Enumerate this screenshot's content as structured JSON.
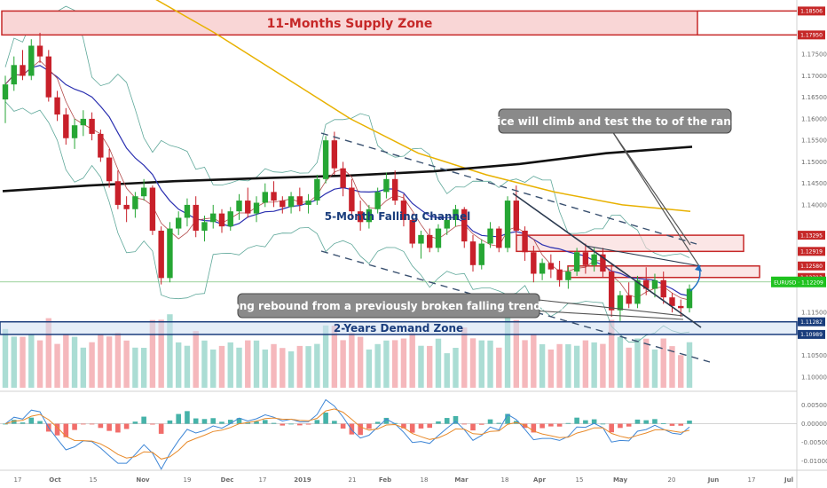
{
  "chart_data": {
    "type": "candlestick",
    "price_axis": {
      "ylim": [
        1.0975,
        1.187
      ],
      "ticks": [
        "1.18506",
        "1.17950",
        "1.17500",
        "1.17000",
        "1.16500",
        "1.16000",
        "1.15500",
        "1.15000",
        "1.14500",
        "1.14000",
        "1.13295",
        "1.12919",
        "1.12580",
        "1.12313",
        "1.11500",
        "1.11282",
        "1.10989",
        "1.10500",
        "1.10000"
      ],
      "current_price_label": "EURUSD · 1.12209",
      "current_price": 1.12209
    },
    "oscillator_axis": {
      "ylim": [
        -0.0115,
        0.0075
      ],
      "ticks": [
        "0.00500",
        "0.00000",
        "-0.00500",
        "-0.01000"
      ]
    },
    "time_axis": {
      "labels": [
        "17",
        "Oct",
        "15",
        "Nov",
        "19",
        "Dec",
        "17",
        "2019",
        "21",
        "Feb",
        "18",
        "Mar",
        "18",
        "Apr",
        "15",
        "May",
        "20",
        "Jun",
        "17",
        "Jul"
      ],
      "months": [
        "Oct",
        "Nov",
        "Dec",
        "2019",
        "Feb",
        "Mar",
        "Apr",
        "May",
        "Jun",
        "Jul"
      ]
    },
    "zones": [
      {
        "label": "11-Months Supply Zone",
        "top": 1.18506,
        "bottom": 1.1795,
        "color": "#c62828"
      },
      {
        "label": "2-Years Demand Zone",
        "top": 1.11282,
        "bottom": 1.10989,
        "color": "#1a3d7c"
      },
      {
        "label": "",
        "top": 1.13295,
        "bottom": 1.12919,
        "color": "#c62828"
      },
      {
        "label": "",
        "top": 1.1258,
        "bottom": 1.12313,
        "color": "#c62828"
      }
    ],
    "annotations": [
      {
        "text": "Price will climb and test the to of the range"
      },
      {
        "text": "Strong rebound from a previously broken falling trendline"
      },
      {
        "text": "5-Month Falling Channel"
      }
    ],
    "candles_ohlc": [
      [
        1.1645,
        1.17,
        1.159,
        1.168
      ],
      [
        1.168,
        1.1745,
        1.1665,
        1.1725
      ],
      [
        1.1725,
        1.176,
        1.169,
        1.17
      ],
      [
        1.17,
        1.1785,
        1.169,
        1.177
      ],
      [
        1.177,
        1.18,
        1.173,
        1.1745
      ],
      [
        1.1745,
        1.176,
        1.164,
        1.165
      ],
      [
        1.165,
        1.1665,
        1.1595,
        1.161
      ],
      [
        1.161,
        1.1625,
        1.154,
        1.1555
      ],
      [
        1.1555,
        1.16,
        1.153,
        1.1585
      ],
      [
        1.1585,
        1.162,
        1.156,
        1.16
      ],
      [
        1.16,
        1.1615,
        1.155,
        1.1565
      ],
      [
        1.1565,
        1.1575,
        1.15,
        1.151
      ],
      [
        1.151,
        1.153,
        1.144,
        1.1455
      ],
      [
        1.1455,
        1.148,
        1.139,
        1.14
      ],
      [
        1.14,
        1.142,
        1.136,
        1.139
      ],
      [
        1.139,
        1.143,
        1.137,
        1.142
      ],
      [
        1.142,
        1.146,
        1.141,
        1.144
      ],
      [
        1.144,
        1.1445,
        1.133,
        1.134
      ],
      [
        1.134,
        1.135,
        1.1215,
        1.123
      ],
      [
        1.123,
        1.136,
        1.122,
        1.1345
      ],
      [
        1.1345,
        1.1385,
        1.133,
        1.137
      ],
      [
        1.137,
        1.1415,
        1.135,
        1.14
      ],
      [
        1.14,
        1.142,
        1.1325,
        1.134
      ],
      [
        1.134,
        1.1375,
        1.1315,
        1.136
      ],
      [
        1.136,
        1.14,
        1.1345,
        1.138
      ],
      [
        1.138,
        1.139,
        1.1335,
        1.135
      ],
      [
        1.135,
        1.1395,
        1.134,
        1.1385
      ],
      [
        1.1385,
        1.1425,
        1.1365,
        1.141
      ],
      [
        1.141,
        1.144,
        1.137,
        1.138
      ],
      [
        1.138,
        1.142,
        1.136,
        1.1405
      ],
      [
        1.1405,
        1.145,
        1.1395,
        1.143
      ],
      [
        1.143,
        1.1455,
        1.1395,
        1.141
      ],
      [
        1.141,
        1.142,
        1.138,
        1.1395
      ],
      [
        1.1395,
        1.143,
        1.138,
        1.142
      ],
      [
        1.142,
        1.144,
        1.1385,
        1.14
      ],
      [
        1.14,
        1.1425,
        1.138,
        1.141
      ],
      [
        1.141,
        1.147,
        1.14,
        1.146
      ],
      [
        1.146,
        1.156,
        1.145,
        1.155
      ],
      [
        1.155,
        1.157,
        1.147,
        1.1485
      ],
      [
        1.1485,
        1.15,
        1.142,
        1.144
      ],
      [
        1.144,
        1.146,
        1.137,
        1.1385
      ],
      [
        1.1385,
        1.141,
        1.134,
        1.136
      ],
      [
        1.136,
        1.14,
        1.1345,
        1.139
      ],
      [
        1.139,
        1.144,
        1.138,
        1.143
      ],
      [
        1.143,
        1.1475,
        1.1415,
        1.146
      ],
      [
        1.146,
        1.148,
        1.14,
        1.141
      ],
      [
        1.141,
        1.1425,
        1.135,
        1.1365
      ],
      [
        1.1365,
        1.138,
        1.13,
        1.131
      ],
      [
        1.131,
        1.134,
        1.1275,
        1.133
      ],
      [
        1.133,
        1.1345,
        1.129,
        1.13
      ],
      [
        1.13,
        1.1355,
        1.129,
        1.1345
      ],
      [
        1.1345,
        1.1375,
        1.133,
        1.1365
      ],
      [
        1.1365,
        1.14,
        1.135,
        1.139
      ],
      [
        1.139,
        1.1395,
        1.13,
        1.1315
      ],
      [
        1.1315,
        1.133,
        1.1245,
        1.126
      ],
      [
        1.126,
        1.132,
        1.125,
        1.131
      ],
      [
        1.131,
        1.136,
        1.13,
        1.1345
      ],
      [
        1.1345,
        1.135,
        1.129,
        1.13
      ],
      [
        1.13,
        1.142,
        1.129,
        1.141
      ],
      [
        1.141,
        1.1445,
        1.133,
        1.134
      ],
      [
        1.134,
        1.135,
        1.127,
        1.129
      ],
      [
        1.129,
        1.1305,
        1.122,
        1.124
      ],
      [
        1.124,
        1.1275,
        1.1225,
        1.1265
      ],
      [
        1.1265,
        1.1285,
        1.123,
        1.125
      ],
      [
        1.125,
        1.127,
        1.121,
        1.1225
      ],
      [
        1.1225,
        1.1255,
        1.1205,
        1.1245
      ],
      [
        1.1245,
        1.13,
        1.1235,
        1.129
      ],
      [
        1.129,
        1.131,
        1.124,
        1.126
      ],
      [
        1.126,
        1.13,
        1.1245,
        1.1285
      ],
      [
        1.1285,
        1.13,
        1.123,
        1.1245
      ],
      [
        1.1245,
        1.1265,
        1.114,
        1.1155
      ],
      [
        1.1155,
        1.12,
        1.113,
        1.119
      ],
      [
        1.119,
        1.122,
        1.116,
        1.117
      ],
      [
        1.117,
        1.1235,
        1.116,
        1.1225
      ],
      [
        1.1225,
        1.1255,
        1.119,
        1.1205
      ],
      [
        1.1205,
        1.124,
        1.1185,
        1.1225
      ],
      [
        1.1225,
        1.1245,
        1.117,
        1.1185
      ],
      [
        1.1185,
        1.1195,
        1.115,
        1.1165
      ],
      [
        1.1165,
        1.118,
        1.114,
        1.116
      ],
      [
        1.116,
        1.1215,
        1.115,
        1.1205
      ]
    ]
  }
}
